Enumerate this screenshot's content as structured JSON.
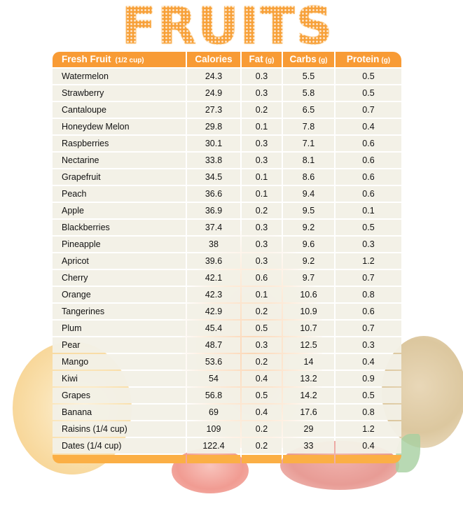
{
  "title": "FRUITS",
  "colors": {
    "accent": "#f89b35",
    "footer": "#fbaf45",
    "row_bg": "#f2f0e6",
    "text": "#111111"
  },
  "table": {
    "headers": [
      {
        "label": "Fresh Fruit",
        "unit": "(1/2 cup)"
      },
      {
        "label": "Calories",
        "unit": ""
      },
      {
        "label": "Fat",
        "unit": "(g)"
      },
      {
        "label": "Carbs",
        "unit": "(g)"
      },
      {
        "label": "Protein",
        "unit": "(g)"
      }
    ],
    "rows": [
      [
        "Watermelon",
        "24.3",
        "0.3",
        "5.5",
        "0.5"
      ],
      [
        "Strawberry",
        "24.9",
        "0.3",
        "5.8",
        "0.5"
      ],
      [
        "Cantaloupe",
        "27.3",
        "0.2",
        "6.5",
        "0.7"
      ],
      [
        "Honeydew Melon",
        "29.8",
        "0.1",
        "7.8",
        "0.4"
      ],
      [
        "Raspberries",
        "30.1",
        "0.3",
        "7.1",
        "0.6"
      ],
      [
        "Nectarine",
        "33.8",
        "0.3",
        "8.1",
        "0.6"
      ],
      [
        "Grapefruit",
        "34.5",
        "0.1",
        "8.6",
        "0.6"
      ],
      [
        "Peach",
        "36.6",
        "0.1",
        "9.4",
        "0.6"
      ],
      [
        "Apple",
        "36.9",
        "0.2",
        "9.5",
        "0.1"
      ],
      [
        "Blackberries",
        "37.4",
        "0.3",
        "9.2",
        "0.5"
      ],
      [
        "Pineapple",
        "38",
        "0.3",
        "9.6",
        "0.3"
      ],
      [
        "Apricot",
        "39.6",
        "0.3",
        "9.2",
        "1.2"
      ],
      [
        "Cherry",
        "42.1",
        "0.6",
        "9.7",
        "0.7"
      ],
      [
        "Orange",
        "42.3",
        "0.1",
        "10.6",
        "0.8"
      ],
      [
        "Tangerines",
        "42.9",
        "0.2",
        "10.9",
        "0.6"
      ],
      [
        "Plum",
        "45.4",
        "0.5",
        "10.7",
        "0.7"
      ],
      [
        "Pear",
        "48.7",
        "0.3",
        "12.5",
        "0.3"
      ],
      [
        "Mango",
        "53.6",
        "0.2",
        "14",
        "0.4"
      ],
      [
        "Kiwi",
        "54",
        "0.4",
        "13.2",
        "0.9"
      ],
      [
        "Grapes",
        "56.8",
        "0.5",
        "14.2",
        "0.5"
      ],
      [
        "Banana",
        "69",
        "0.4",
        "17.6",
        "0.8"
      ],
      [
        "Raisins (1/4 cup)",
        "109",
        "0.2",
        "29",
        "1.2"
      ],
      [
        "Dates (1/4 cup)",
        "122.4",
        "0.2",
        "33",
        "0.4"
      ]
    ]
  },
  "background_images": [
    "orange-slice",
    "kiwi",
    "strawberry",
    "strawberry"
  ]
}
